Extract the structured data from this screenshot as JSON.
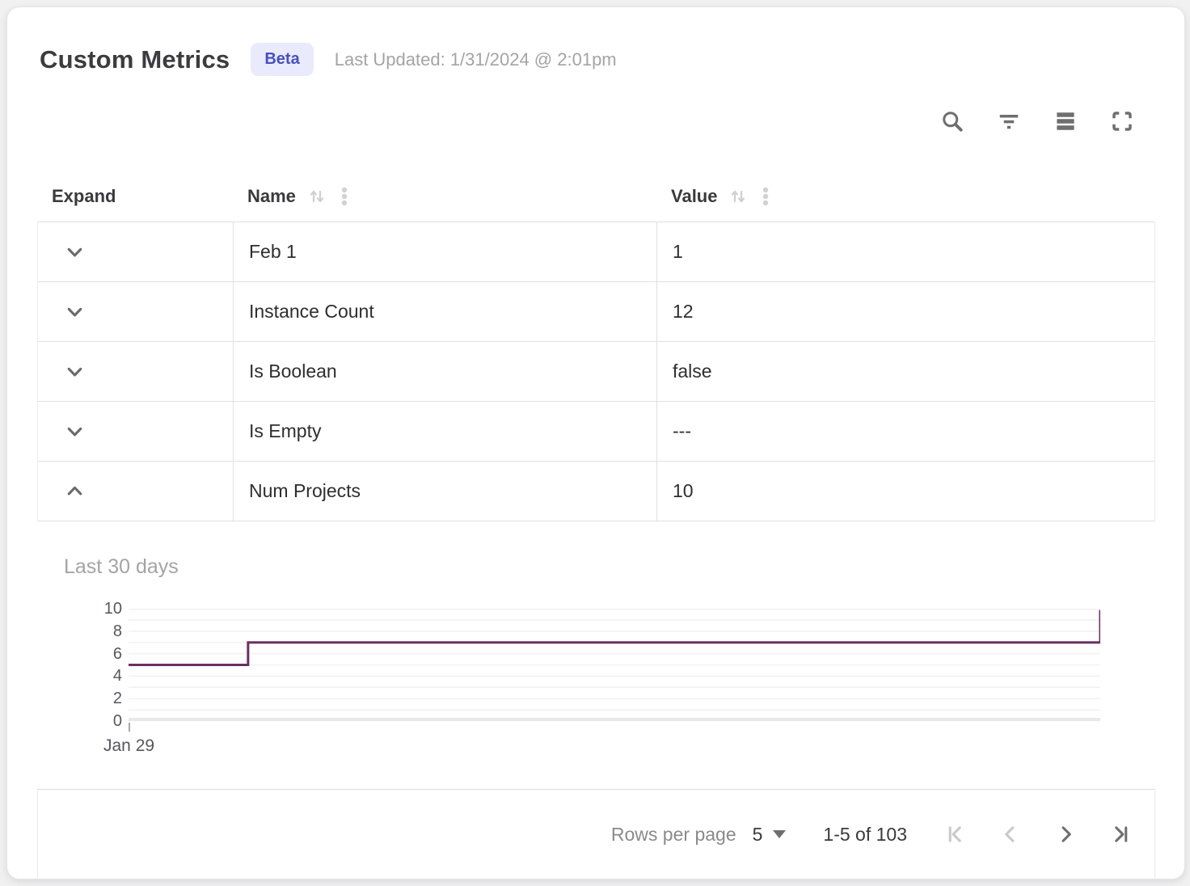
{
  "header": {
    "title": "Custom Metrics",
    "badge_label": "Beta",
    "last_updated": "Last Updated: 1/31/2024 @ 2:01pm"
  },
  "toolbar": {
    "icons": [
      "search-icon",
      "filter-icon",
      "density-icon",
      "fullscreen-icon"
    ]
  },
  "table": {
    "columns": [
      {
        "label": "Expand",
        "sortable": false
      },
      {
        "label": "Name",
        "sortable": true,
        "menu": true
      },
      {
        "label": "Value",
        "sortable": true,
        "menu": true
      }
    ],
    "rows": [
      {
        "name": "Feb 1",
        "value": "1",
        "expanded": false
      },
      {
        "name": "Instance Count",
        "value": "12",
        "expanded": false
      },
      {
        "name": "Is Boolean",
        "value": "false",
        "expanded": false
      },
      {
        "name": "Is Empty",
        "value": "---",
        "expanded": false
      },
      {
        "name": "Num Projects",
        "value": "10",
        "expanded": true
      }
    ]
  },
  "expanded_row_panel": {
    "metric": "Num Projects",
    "label": "Last 30 days"
  },
  "chart_data": {
    "type": "line",
    "subtype": "step",
    "title": "Last 30 days",
    "xlabel": "",
    "ylabel": "",
    "ylim": [
      0,
      10
    ],
    "yticks": [
      0,
      2,
      4,
      6,
      8,
      10
    ],
    "grid": "horizontal",
    "grid_step": 1,
    "x_axis": {
      "visible_tick": "Jan 29",
      "range": "last 30 days"
    },
    "series": [
      {
        "name": "Num Projects",
        "color": "#6b2f63",
        "points": [
          {
            "x_frac": 0.0,
            "y": 5
          },
          {
            "x_frac": 0.123,
            "y": 5
          },
          {
            "x_frac": 0.123,
            "y": 7
          },
          {
            "x_frac": 1.0,
            "y": 7
          },
          {
            "x_frac": 1.0,
            "y": 10
          }
        ]
      }
    ]
  },
  "footer": {
    "rows_per_page_label": "Rows per page",
    "rows_per_page_value": "5",
    "range_label": "1-5 of 103",
    "pagination": [
      {
        "icon": "first-page-icon",
        "enabled": false
      },
      {
        "icon": "previous-page-icon",
        "enabled": false
      },
      {
        "icon": "next-page-icon",
        "enabled": true
      },
      {
        "icon": "last-page-icon",
        "enabled": true
      }
    ]
  },
  "colors": {
    "badge_bg": "#e9ebfc",
    "badge_text": "#474fc6",
    "chart_line": "#6b2f63",
    "row_border": "#e0e0e0",
    "icon_gray": "#6e6e6e",
    "disabled_icon": "#c9c9c9"
  }
}
